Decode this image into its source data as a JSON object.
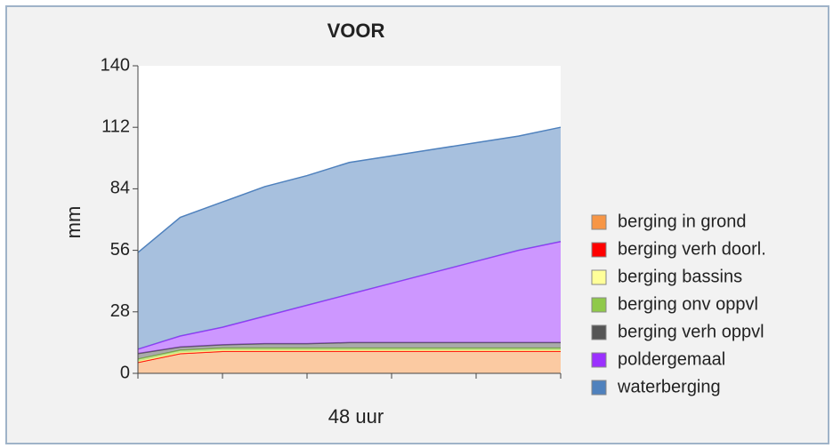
{
  "chart_data": {
    "type": "stacked-area",
    "title": "VOOR",
    "ylabel": "mm",
    "xlabel": "48 uur",
    "categories": [
      null,
      null,
      null,
      null,
      null,
      null,
      null,
      null,
      null,
      null,
      null
    ],
    "ylim": [
      0,
      140
    ],
    "yticks": [
      0,
      28,
      56,
      84,
      112,
      140
    ],
    "series": [
      {
        "name": "berging in grond",
        "color": "#f79646",
        "values": [
          5,
          9,
          10,
          10,
          10,
          10,
          10,
          10,
          10,
          10,
          10
        ]
      },
      {
        "name": "berging verh doorl.",
        "color": "#ff0000",
        "values": [
          0,
          0,
          0,
          0,
          0,
          0,
          0,
          0,
          0,
          0,
          0
        ]
      },
      {
        "name": "berging bassins",
        "color": "#ffff99",
        "values": [
          0.5,
          0.5,
          0.5,
          0.5,
          0.5,
          0.5,
          0.5,
          0.5,
          0.5,
          0.5,
          0.5
        ]
      },
      {
        "name": "berging onv oppvl",
        "color": "#8fc94a",
        "values": [
          1,
          1,
          1,
          1,
          1,
          1,
          1,
          1,
          1,
          1,
          1
        ]
      },
      {
        "name": "berging verh oppvl",
        "color": "#555555",
        "values": [
          2.5,
          1.5,
          1.5,
          2,
          2,
          2.5,
          2.5,
          2.5,
          2.5,
          2.5,
          2.5
        ]
      },
      {
        "name": "poldergemaal",
        "color": "#9b30ff",
        "values": [
          2,
          5,
          8,
          12.5,
          17.5,
          22,
          27,
          32,
          37,
          42,
          46
        ]
      },
      {
        "name": "waterberging",
        "color": "#4f81bd",
        "values": [
          44,
          54,
          57,
          59,
          59,
          60,
          58,
          56,
          54,
          52,
          52
        ]
      }
    ]
  }
}
